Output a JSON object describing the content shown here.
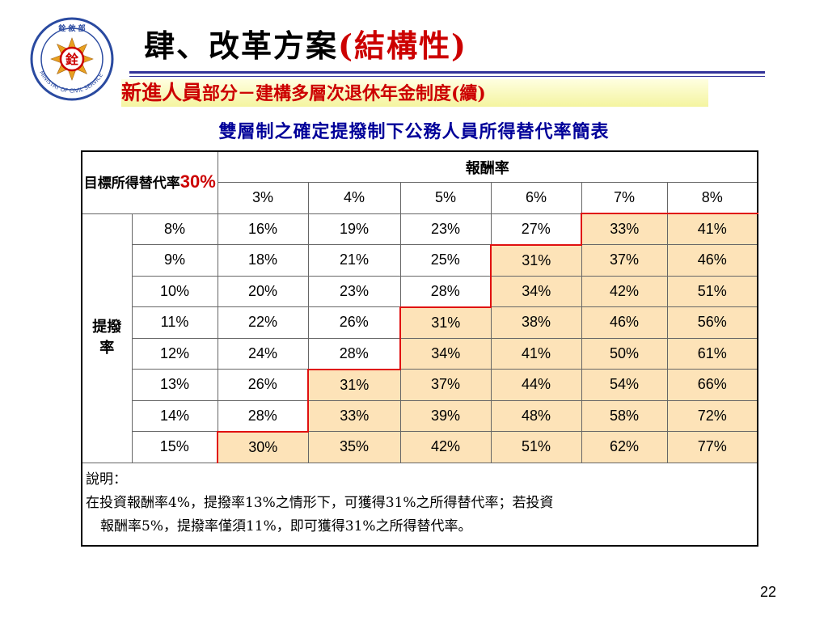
{
  "logo": {
    "icon": "ministry-of-civil-service-seal",
    "seal_chars": "銓",
    "top_text": "銓 敘 部",
    "ring_text": "MINISTRY OF CIVIL SERVICE"
  },
  "title": {
    "main": "肆、改革方案",
    "paren": "(結構性)"
  },
  "subtitle": {
    "highlight": "新進人員",
    "rest": "部分－建構多層次退休年金制度(續)"
  },
  "caption": "雙層制之確定提撥制下公務人員所得替代率簡表",
  "table": {
    "target_label": "目標所得替代率",
    "target_value": "30%",
    "pay_rate_header": "報酬率",
    "contribution_label": "提撥率",
    "pay_rates": [
      "3%",
      "4%",
      "5%",
      "6%",
      "7%",
      "8%"
    ],
    "rows": [
      {
        "rate": "8%",
        "values": [
          "16%",
          "19%",
          "23%",
          "27%",
          "33%",
          "41%"
        ]
      },
      {
        "rate": "9%",
        "values": [
          "18%",
          "21%",
          "25%",
          "31%",
          "37%",
          "46%"
        ]
      },
      {
        "rate": "10%",
        "values": [
          "20%",
          "23%",
          "28%",
          "34%",
          "42%",
          "51%"
        ]
      },
      {
        "rate": "11%",
        "values": [
          "22%",
          "26%",
          "31%",
          "38%",
          "46%",
          "56%"
        ]
      },
      {
        "rate": "12%",
        "values": [
          "24%",
          "28%",
          "34%",
          "41%",
          "50%",
          "61%"
        ]
      },
      {
        "rate": "13%",
        "values": [
          "26%",
          "31%",
          "37%",
          "44%",
          "54%",
          "66%"
        ]
      },
      {
        "rate": "14%",
        "values": [
          "28%",
          "33%",
          "39%",
          "48%",
          "58%",
          "72%"
        ]
      },
      {
        "rate": "15%",
        "values": [
          "30%",
          "35%",
          "42%",
          "51%",
          "62%",
          "77%"
        ]
      }
    ],
    "highlight_color": "#fde3b8",
    "boundary_color": "#e01010",
    "note_title": "說明：",
    "note_line1": "在投資報酬率4%，提撥率13%之情形下，可獲得31%之所得替代率；若投資",
    "note_line2": "報酬率5%，提撥率僅須11%，即可獲得31%之所得替代率。"
  },
  "page_number": "22"
}
